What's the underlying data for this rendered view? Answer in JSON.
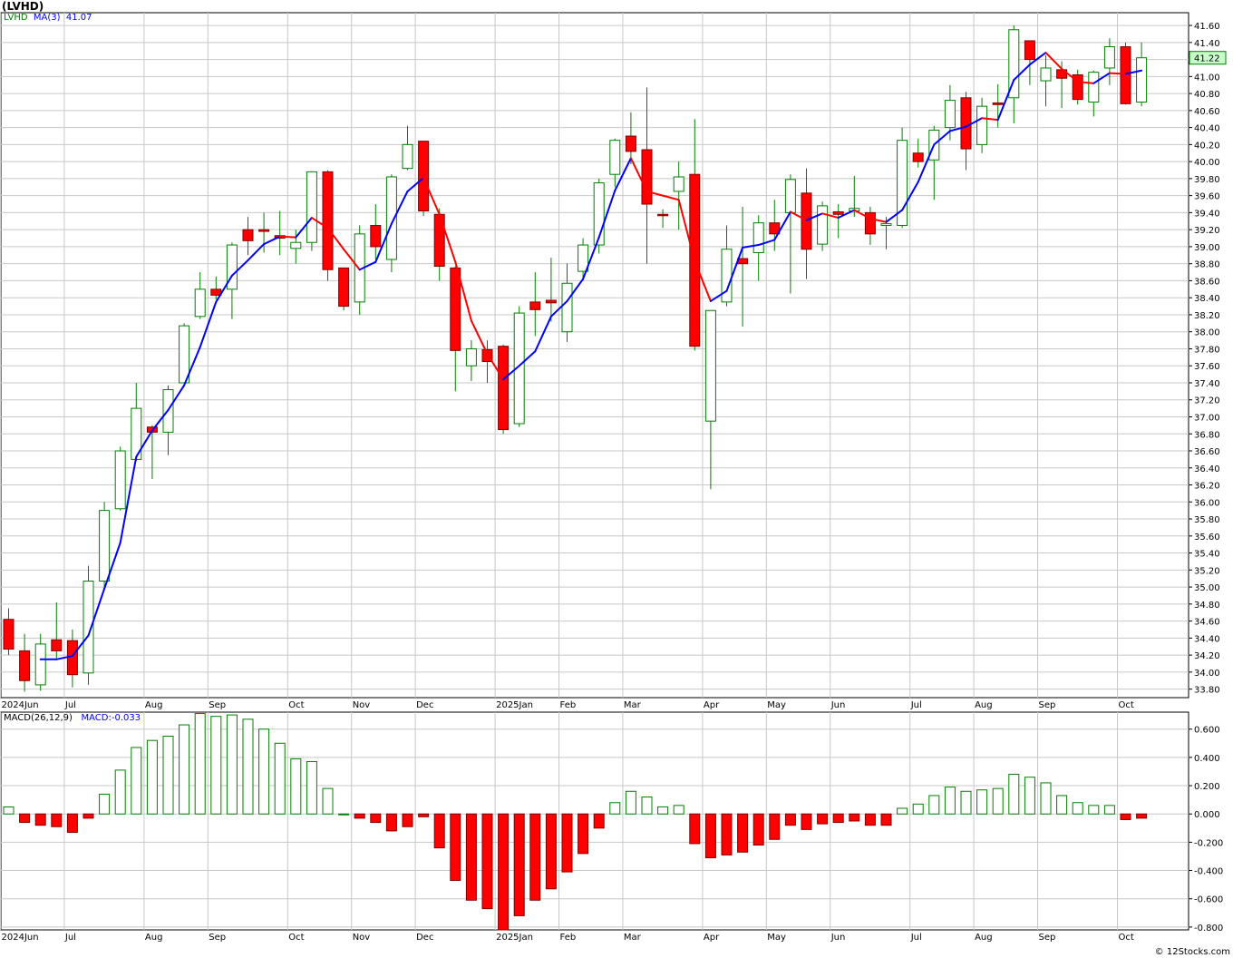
{
  "title": "(LVHD)",
  "footer": "© 12Stocks.com",
  "colors": {
    "up": "#008000",
    "down": "#ff0000",
    "down_border": "#800000",
    "ma_up": "#0000ff",
    "ma_down": "#ff0000",
    "grid": "#c8c8c8",
    "last_price_bg": "#c8ffc8",
    "hist_up": "#ffffff",
    "hist_down": "#ff0000"
  },
  "chart_data": [
    {
      "type": "candlestick",
      "symbol_label": "LVHD",
      "ma_label": "MA(3)",
      "ma_value_label": "41.07",
      "last_price_label": "41.22",
      "ylim": [
        33.7,
        41.75
      ],
      "yticks": [
        "33.80",
        "34.00",
        "34.20",
        "34.40",
        "34.60",
        "34.80",
        "35.00",
        "35.20",
        "35.40",
        "35.60",
        "35.80",
        "36.00",
        "36.20",
        "36.40",
        "36.60",
        "36.80",
        "37.00",
        "37.20",
        "37.40",
        "37.60",
        "37.80",
        "38.00",
        "38.20",
        "38.40",
        "38.60",
        "38.80",
        "39.00",
        "39.20",
        "39.40",
        "39.60",
        "39.80",
        "40.00",
        "40.20",
        "40.40",
        "40.60",
        "40.80",
        "41.00",
        "41.20",
        "41.40",
        "41.60"
      ],
      "month_labels": [
        {
          "label": "2024Jun",
          "bar": 0
        },
        {
          "label": "Jul",
          "bar": 4
        },
        {
          "label": "Aug",
          "bar": 9
        },
        {
          "label": "Sep",
          "bar": 13
        },
        {
          "label": "Oct",
          "bar": 18
        },
        {
          "label": "Nov",
          "bar": 22
        },
        {
          "label": "Dec",
          "bar": 26
        },
        {
          "label": "2025Jan",
          "bar": 31
        },
        {
          "label": "Feb",
          "bar": 35
        },
        {
          "label": "Mar",
          "bar": 39
        },
        {
          "label": "Apr",
          "bar": 44
        },
        {
          "label": "May",
          "bar": 48
        },
        {
          "label": "Jun",
          "bar": 52
        },
        {
          "label": "Jul",
          "bar": 57
        },
        {
          "label": "Aug",
          "bar": 61
        },
        {
          "label": "Sep",
          "bar": 65
        },
        {
          "label": "Oct",
          "bar": 70
        }
      ],
      "candles": [
        {
          "o": 34.62,
          "h": 34.75,
          "l": 34.2,
          "c": 34.27
        },
        {
          "o": 34.25,
          "h": 34.45,
          "l": 33.77,
          "c": 33.9
        },
        {
          "o": 33.85,
          "h": 34.45,
          "l": 33.78,
          "c": 34.33
        },
        {
          "o": 34.38,
          "h": 34.82,
          "l": 34.15,
          "c": 34.25
        },
        {
          "o": 34.37,
          "h": 34.5,
          "l": 33.82,
          "c": 33.97
        },
        {
          "o": 33.99,
          "h": 35.25,
          "l": 33.85,
          "c": 35.07
        },
        {
          "o": 35.07,
          "h": 36.0,
          "l": 35.0,
          "c": 35.9
        },
        {
          "o": 35.92,
          "h": 36.65,
          "l": 35.9,
          "c": 36.6
        },
        {
          "o": 36.5,
          "h": 37.4,
          "l": 36.48,
          "c": 37.1
        },
        {
          "o": 36.88,
          "h": 36.9,
          "l": 36.27,
          "c": 36.82
        },
        {
          "o": 36.82,
          "h": 37.37,
          "l": 36.55,
          "c": 37.32
        },
        {
          "o": 37.4,
          "h": 38.1,
          "l": 37.4,
          "c": 38.07
        },
        {
          "o": 38.18,
          "h": 38.7,
          "l": 38.15,
          "c": 38.5
        },
        {
          "o": 38.5,
          "h": 38.65,
          "l": 38.38,
          "c": 38.43
        },
        {
          "o": 38.5,
          "h": 39.05,
          "l": 38.15,
          "c": 39.02
        },
        {
          "o": 39.2,
          "h": 39.35,
          "l": 38.9,
          "c": 39.07
        },
        {
          "o": 39.2,
          "h": 39.4,
          "l": 38.93,
          "c": 39.18
        },
        {
          "o": 39.13,
          "h": 39.42,
          "l": 38.9,
          "c": 39.1
        },
        {
          "o": 38.98,
          "h": 39.2,
          "l": 38.8,
          "c": 39.05
        },
        {
          "o": 39.05,
          "h": 39.88,
          "l": 38.95,
          "c": 39.88
        },
        {
          "o": 39.88,
          "h": 39.9,
          "l": 38.6,
          "c": 38.73
        },
        {
          "o": 38.75,
          "h": 38.75,
          "l": 38.25,
          "c": 38.3
        },
        {
          "o": 38.35,
          "h": 39.25,
          "l": 38.2,
          "c": 39.15
        },
        {
          "o": 39.25,
          "h": 39.5,
          "l": 38.85,
          "c": 39.0
        },
        {
          "o": 38.85,
          "h": 39.85,
          "l": 38.7,
          "c": 39.82
        },
        {
          "o": 39.92,
          "h": 40.42,
          "l": 39.9,
          "c": 40.2
        },
        {
          "o": 40.24,
          "h": 40.24,
          "l": 39.36,
          "c": 39.42
        },
        {
          "o": 39.38,
          "h": 39.45,
          "l": 38.6,
          "c": 38.77
        },
        {
          "o": 38.75,
          "h": 38.77,
          "l": 37.3,
          "c": 37.78
        },
        {
          "o": 37.6,
          "h": 37.9,
          "l": 37.42,
          "c": 37.8
        },
        {
          "o": 37.79,
          "h": 37.9,
          "l": 37.4,
          "c": 37.65
        },
        {
          "o": 37.83,
          "h": 37.85,
          "l": 36.8,
          "c": 36.85
        },
        {
          "o": 36.92,
          "h": 38.3,
          "l": 36.88,
          "c": 38.22
        },
        {
          "o": 38.35,
          "h": 38.7,
          "l": 37.95,
          "c": 38.26
        },
        {
          "o": 38.37,
          "h": 38.87,
          "l": 38.12,
          "c": 38.34
        },
        {
          "o": 38.0,
          "h": 38.8,
          "l": 37.88,
          "c": 38.57
        },
        {
          "o": 38.71,
          "h": 39.1,
          "l": 38.6,
          "c": 39.02
        },
        {
          "o": 39.02,
          "h": 39.8,
          "l": 38.92,
          "c": 39.75
        },
        {
          "o": 39.85,
          "h": 40.27,
          "l": 39.7,
          "c": 40.25
        },
        {
          "o": 40.3,
          "h": 40.58,
          "l": 39.97,
          "c": 40.12
        },
        {
          "o": 40.14,
          "h": 40.87,
          "l": 38.8,
          "c": 39.5
        },
        {
          "o": 39.38,
          "h": 39.44,
          "l": 39.22,
          "c": 39.37
        },
        {
          "o": 39.65,
          "h": 40.0,
          "l": 39.2,
          "c": 39.82
        },
        {
          "o": 39.85,
          "h": 40.5,
          "l": 37.78,
          "c": 37.83
        },
        {
          "o": 36.95,
          "h": 38.25,
          "l": 36.15,
          "c": 38.25
        },
        {
          "o": 38.35,
          "h": 39.25,
          "l": 38.3,
          "c": 38.97
        },
        {
          "o": 38.86,
          "h": 39.47,
          "l": 38.06,
          "c": 38.8
        },
        {
          "o": 38.93,
          "h": 39.37,
          "l": 38.6,
          "c": 39.28
        },
        {
          "o": 39.28,
          "h": 39.55,
          "l": 38.95,
          "c": 39.15
        },
        {
          "o": 39.4,
          "h": 39.85,
          "l": 38.45,
          "c": 39.79
        },
        {
          "o": 39.63,
          "h": 39.92,
          "l": 38.62,
          "c": 38.97
        },
        {
          "o": 39.03,
          "h": 39.53,
          "l": 38.95,
          "c": 39.48
        },
        {
          "o": 39.41,
          "h": 39.5,
          "l": 39.1,
          "c": 39.38
        },
        {
          "o": 39.42,
          "h": 39.83,
          "l": 39.35,
          "c": 39.45
        },
        {
          "o": 39.4,
          "h": 39.47,
          "l": 39.02,
          "c": 39.15
        },
        {
          "o": 39.25,
          "h": 39.35,
          "l": 38.97,
          "c": 39.27
        },
        {
          "o": 39.25,
          "h": 40.4,
          "l": 39.22,
          "c": 40.25
        },
        {
          "o": 40.1,
          "h": 40.27,
          "l": 39.93,
          "c": 40.0
        },
        {
          "o": 40.02,
          "h": 40.42,
          "l": 39.55,
          "c": 40.37
        },
        {
          "o": 40.4,
          "h": 40.9,
          "l": 40.25,
          "c": 40.72
        },
        {
          "o": 40.75,
          "h": 40.82,
          "l": 39.9,
          "c": 40.15
        },
        {
          "o": 40.2,
          "h": 40.75,
          "l": 40.1,
          "c": 40.65
        },
        {
          "o": 40.69,
          "h": 40.91,
          "l": 40.4,
          "c": 40.67
        },
        {
          "o": 40.75,
          "h": 41.6,
          "l": 40.45,
          "c": 41.55
        },
        {
          "o": 41.42,
          "h": 41.42,
          "l": 40.9,
          "c": 41.2
        },
        {
          "o": 40.95,
          "h": 41.25,
          "l": 40.65,
          "c": 41.1
        },
        {
          "o": 41.08,
          "h": 41.18,
          "l": 40.63,
          "c": 40.98
        },
        {
          "o": 41.02,
          "h": 41.08,
          "l": 40.67,
          "c": 40.73
        },
        {
          "o": 40.7,
          "h": 41.07,
          "l": 40.53,
          "c": 41.05
        },
        {
          "o": 41.1,
          "h": 41.45,
          "l": 40.9,
          "c": 41.35
        },
        {
          "o": 41.35,
          "h": 41.4,
          "l": 40.67,
          "c": 40.68
        },
        {
          "o": 40.7,
          "h": 41.4,
          "l": 40.65,
          "c": 41.22
        }
      ],
      "ma3": [
        null,
        null,
        34.15,
        34.15,
        34.19,
        34.43,
        34.98,
        35.52,
        36.53,
        36.84,
        37.08,
        37.37,
        37.82,
        38.35,
        38.66,
        38.84,
        39.03,
        39.12,
        39.11,
        39.34,
        39.22,
        38.97,
        38.73,
        38.82,
        39.27,
        39.65,
        39.81,
        39.38,
        38.82,
        38.13,
        37.74,
        37.44,
        37.6,
        37.77,
        38.18,
        38.36,
        38.62,
        39.11,
        39.66,
        40.04,
        39.65,
        39.6,
        39.55,
        38.83,
        38.36,
        38.48,
        38.99,
        39.02,
        39.08,
        39.41,
        39.31,
        39.39,
        39.34,
        39.43,
        39.33,
        39.29,
        39.43,
        39.76,
        40.2,
        40.36,
        40.41,
        40.51,
        40.49,
        40.96,
        41.14,
        41.28,
        41.09,
        40.94,
        40.92,
        41.04,
        41.03,
        41.07
      ]
    },
    {
      "type": "bar",
      "label": "MACD(26,12,9)",
      "value_label": "MACD:-0.033",
      "ylim": [
        -0.82,
        0.72
      ],
      "yticks": [
        "0.600",
        "0.400",
        "0.200",
        "0.000",
        "-0.200",
        "-0.400",
        "-0.600",
        "-0.800"
      ],
      "values": [
        0.05,
        -0.06,
        -0.08,
        -0.09,
        -0.13,
        -0.03,
        0.14,
        0.31,
        0.47,
        0.52,
        0.55,
        0.63,
        0.71,
        0.69,
        0.7,
        0.67,
        0.6,
        0.5,
        0.39,
        0.37,
        0.18,
        0.0,
        -0.03,
        -0.06,
        -0.12,
        -0.09,
        -0.02,
        -0.24,
        -0.47,
        -0.61,
        -0.67,
        -0.82,
        -0.72,
        -0.61,
        -0.53,
        -0.41,
        -0.28,
        -0.1,
        0.08,
        0.16,
        0.12,
        0.05,
        0.06,
        -0.21,
        -0.31,
        -0.29,
        -0.27,
        -0.22,
        -0.18,
        -0.08,
        -0.11,
        -0.07,
        -0.06,
        -0.05,
        -0.08,
        -0.08,
        0.04,
        0.07,
        0.13,
        0.19,
        0.16,
        0.17,
        0.18,
        0.28,
        0.26,
        0.22,
        0.13,
        0.08,
        0.06,
        0.06,
        -0.04,
        -0.03
      ]
    }
  ]
}
